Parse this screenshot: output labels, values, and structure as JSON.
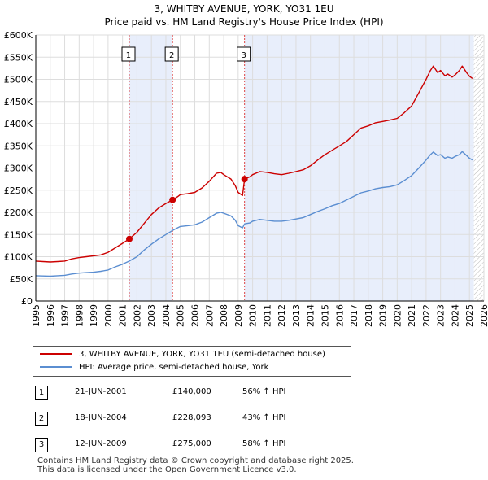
{
  "header": {
    "title": "3, WHITBY AVENUE, YORK, YO31 1EU",
    "subtitle": "Price paid vs. HM Land Registry's House Price Index (HPI)"
  },
  "chart_data": {
    "type": "line",
    "title": "3, WHITBY AVENUE, YORK, YO31 1EU",
    "subtitle": "Price paid vs. HM Land Registry's House Price Index (HPI)",
    "xlabel": "",
    "ylabel": "",
    "xlim": [
      1995,
      2026
    ],
    "ylim": [
      0,
      600000
    ],
    "grid": true,
    "x_ticks": [
      1995,
      1996,
      1997,
      1998,
      1999,
      2000,
      2001,
      2002,
      2003,
      2004,
      2005,
      2006,
      2007,
      2008,
      2009,
      2010,
      2011,
      2012,
      2013,
      2014,
      2015,
      2016,
      2017,
      2018,
      2019,
      2020,
      2021,
      2022,
      2023,
      2024,
      2025,
      2026
    ],
    "x_tick_labels": [
      "1995",
      "1996",
      "1997",
      "1998",
      "1999",
      "2000",
      "2001",
      "2002",
      "2003",
      "2004",
      "2005",
      "2006",
      "2007",
      "2008",
      "2009",
      "2010",
      "2011",
      "2012",
      "2013",
      "2014",
      "2015",
      "2016",
      "2017",
      "2018",
      "2019",
      "2020",
      "2021",
      "2022",
      "2023",
      "2024",
      "2025",
      "2026"
    ],
    "y_ticks": [
      0,
      50000,
      100000,
      150000,
      200000,
      250000,
      300000,
      350000,
      400000,
      450000,
      500000,
      550000,
      600000
    ],
    "y_tick_labels": [
      "£0",
      "£50K",
      "£100K",
      "£150K",
      "£200K",
      "£250K",
      "£300K",
      "£350K",
      "£400K",
      "£450K",
      "£500K",
      "£550K",
      "£600K"
    ],
    "shaded_spans": [
      [
        2001.47,
        2004.46
      ],
      [
        2009.44,
        2025.3
      ]
    ],
    "future_hatch_from": 2025.3,
    "series": [
      {
        "name": "3, WHITBY AVENUE, YORK, YO31 1EU (semi-detached house)",
        "color": "#cc0000",
        "points": [
          [
            1995,
            90000
          ],
          [
            1995.5,
            89000
          ],
          [
            1996,
            88000
          ],
          [
            1996.5,
            89000
          ],
          [
            1997,
            90000
          ],
          [
            1997.5,
            95000
          ],
          [
            1998,
            98000
          ],
          [
            1998.5,
            100000
          ],
          [
            1999,
            102000
          ],
          [
            1999.5,
            104000
          ],
          [
            2000,
            110000
          ],
          [
            2000.5,
            120000
          ],
          [
            2001,
            130000
          ],
          [
            2001.47,
            140000
          ],
          [
            2002,
            155000
          ],
          [
            2002.5,
            175000
          ],
          [
            2003,
            195000
          ],
          [
            2003.5,
            210000
          ],
          [
            2004,
            220000
          ],
          [
            2004.46,
            228093
          ],
          [
            2004.8,
            235000
          ],
          [
            2005,
            240000
          ],
          [
            2005.5,
            242000
          ],
          [
            2006,
            245000
          ],
          [
            2006.5,
            255000
          ],
          [
            2007,
            270000
          ],
          [
            2007.5,
            288000
          ],
          [
            2007.8,
            290000
          ],
          [
            2008,
            285000
          ],
          [
            2008.5,
            275000
          ],
          [
            2008.8,
            260000
          ],
          [
            2009,
            245000
          ],
          [
            2009.3,
            238000
          ],
          [
            2009.44,
            275000
          ],
          [
            2009.8,
            280000
          ],
          [
            2010,
            285000
          ],
          [
            2010.5,
            292000
          ],
          [
            2011,
            290000
          ],
          [
            2011.5,
            287000
          ],
          [
            2012,
            285000
          ],
          [
            2012.5,
            288000
          ],
          [
            2013,
            292000
          ],
          [
            2013.5,
            296000
          ],
          [
            2014,
            305000
          ],
          [
            2014.5,
            318000
          ],
          [
            2015,
            330000
          ],
          [
            2015.5,
            340000
          ],
          [
            2016,
            350000
          ],
          [
            2016.5,
            360000
          ],
          [
            2017,
            375000
          ],
          [
            2017.5,
            390000
          ],
          [
            2018,
            395000
          ],
          [
            2018.5,
            402000
          ],
          [
            2019,
            405000
          ],
          [
            2019.5,
            408000
          ],
          [
            2020,
            412000
          ],
          [
            2020.5,
            425000
          ],
          [
            2021,
            440000
          ],
          [
            2021.5,
            470000
          ],
          [
            2022,
            500000
          ],
          [
            2022.3,
            520000
          ],
          [
            2022.5,
            530000
          ],
          [
            2022.8,
            515000
          ],
          [
            2023,
            520000
          ],
          [
            2023.3,
            508000
          ],
          [
            2023.5,
            512000
          ],
          [
            2023.8,
            505000
          ],
          [
            2024,
            510000
          ],
          [
            2024.3,
            520000
          ],
          [
            2024.5,
            530000
          ],
          [
            2024.8,
            515000
          ],
          [
            2025.0,
            507000
          ],
          [
            2025.2,
            502000
          ]
        ]
      },
      {
        "name": "HPI: Average price, semi-detached house, York",
        "color": "#5b8ed1",
        "points": [
          [
            1995,
            57000
          ],
          [
            1995.5,
            56500
          ],
          [
            1996,
            56000
          ],
          [
            1996.5,
            57000
          ],
          [
            1997,
            58000
          ],
          [
            1997.5,
            61000
          ],
          [
            1998,
            63000
          ],
          [
            1998.5,
            64000
          ],
          [
            1999,
            65000
          ],
          [
            1999.5,
            67000
          ],
          [
            2000,
            70000
          ],
          [
            2000.5,
            77000
          ],
          [
            2001,
            83000
          ],
          [
            2001.47,
            90000
          ],
          [
            2002,
            100000
          ],
          [
            2002.5,
            115000
          ],
          [
            2003,
            128000
          ],
          [
            2003.5,
            140000
          ],
          [
            2004,
            150000
          ],
          [
            2004.46,
            159000
          ],
          [
            2004.8,
            165000
          ],
          [
            2005,
            168000
          ],
          [
            2005.5,
            170000
          ],
          [
            2006,
            172000
          ],
          [
            2006.5,
            178000
          ],
          [
            2007,
            188000
          ],
          [
            2007.5,
            198000
          ],
          [
            2007.8,
            200000
          ],
          [
            2008,
            198000
          ],
          [
            2008.5,
            192000
          ],
          [
            2008.8,
            182000
          ],
          [
            2009,
            170000
          ],
          [
            2009.3,
            165000
          ],
          [
            2009.44,
            174000
          ],
          [
            2009.8,
            176000
          ],
          [
            2010,
            180000
          ],
          [
            2010.5,
            184000
          ],
          [
            2011,
            182000
          ],
          [
            2011.5,
            180000
          ],
          [
            2012,
            180000
          ],
          [
            2012.5,
            182000
          ],
          [
            2013,
            185000
          ],
          [
            2013.5,
            188000
          ],
          [
            2014,
            195000
          ],
          [
            2014.5,
            202000
          ],
          [
            2015,
            208000
          ],
          [
            2015.5,
            215000
          ],
          [
            2016,
            220000
          ],
          [
            2016.5,
            228000
          ],
          [
            2017,
            236000
          ],
          [
            2017.5,
            244000
          ],
          [
            2018,
            248000
          ],
          [
            2018.5,
            253000
          ],
          [
            2019,
            256000
          ],
          [
            2019.5,
            258000
          ],
          [
            2020,
            262000
          ],
          [
            2020.5,
            272000
          ],
          [
            2021,
            283000
          ],
          [
            2021.5,
            300000
          ],
          [
            2022,
            318000
          ],
          [
            2022.3,
            330000
          ],
          [
            2022.5,
            336000
          ],
          [
            2022.8,
            328000
          ],
          [
            2023,
            330000
          ],
          [
            2023.3,
            322000
          ],
          [
            2023.5,
            325000
          ],
          [
            2023.8,
            322000
          ],
          [
            2024,
            326000
          ],
          [
            2024.3,
            330000
          ],
          [
            2024.5,
            337000
          ],
          [
            2024.8,
            328000
          ],
          [
            2025.0,
            322000
          ],
          [
            2025.2,
            318000
          ]
        ]
      }
    ],
    "annotations": [
      {
        "label": "1",
        "x": 2001.47,
        "y": 140000
      },
      {
        "label": "2",
        "x": 2004.46,
        "y": 228093
      },
      {
        "label": "3",
        "x": 2009.44,
        "y": 275000
      }
    ]
  },
  "legend": {
    "property_label": "3, WHITBY AVENUE, YORK, YO31 1EU (semi-detached house)",
    "hpi_label": "HPI: Average price, semi-detached house, York",
    "property_color": "#cc0000",
    "hpi_color": "#5b8ed1"
  },
  "transactions": [
    {
      "num": "1",
      "date": "21-JUN-2001",
      "price": "£140,000",
      "hpi": "56% ↑ HPI"
    },
    {
      "num": "2",
      "date": "18-JUN-2004",
      "price": "£228,093",
      "hpi": "43% ↑ HPI"
    },
    {
      "num": "3",
      "date": "12-JUN-2009",
      "price": "£275,000",
      "hpi": "58% ↑ HPI"
    }
  ],
  "footer": {
    "line1": "Contains HM Land Registry data © Crown copyright and database right 2025.",
    "line2": "This data is licensed under the Open Government Licence v3.0."
  }
}
